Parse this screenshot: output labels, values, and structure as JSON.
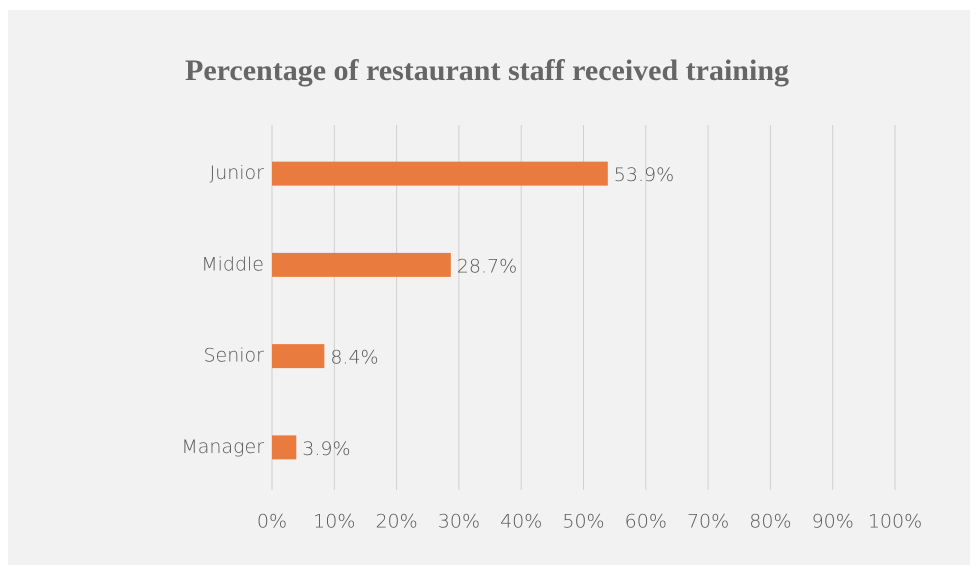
{
  "chart_data": {
    "type": "bar",
    "orientation": "horizontal",
    "title": "Percentage of restaurant staff received training",
    "categories": [
      "Junior",
      "Middle",
      "Senior",
      "Manager"
    ],
    "values": [
      53.9,
      28.7,
      8.4,
      3.9
    ],
    "value_labels": [
      "53.9%",
      "28.7%",
      "8.4%",
      "3.9%"
    ],
    "color": "#e97b3f",
    "xlim": [
      0,
      100
    ],
    "xticks": [
      {
        "value": 0,
        "label": "0%"
      },
      {
        "value": 10,
        "label": "10%"
      },
      {
        "value": 20,
        "label": "20%"
      },
      {
        "value": 30,
        "label": "30%"
      },
      {
        "value": 40,
        "label": "40%"
      },
      {
        "value": 50,
        "label": "50%"
      },
      {
        "value": 60,
        "label": "60%"
      },
      {
        "value": 70,
        "label": "70%"
      },
      {
        "value": 80,
        "label": "80%"
      },
      {
        "value": 90,
        "label": "90%"
      },
      {
        "value": 100,
        "label": "100%"
      }
    ],
    "grid": true
  }
}
